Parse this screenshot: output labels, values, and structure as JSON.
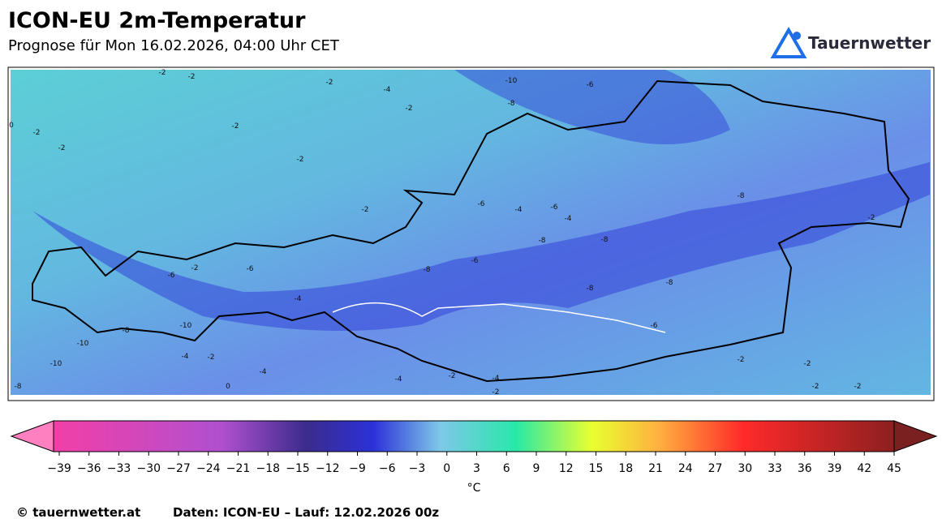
{
  "header": {
    "title": "ICON-EU 2m-Temperatur",
    "subtitle": "Prognose für Mon 16.02.2026, 04:00 Uhr CET"
  },
  "logo": {
    "text": "Tauernwetter"
  },
  "map": {
    "contour_labels": [
      -2,
      -2,
      -2,
      -4,
      -10,
      -6,
      -8,
      -2,
      -2,
      0,
      -2,
      -2,
      -2,
      -2,
      -8,
      -2,
      -4,
      -6,
      -4,
      -6,
      -6,
      -2,
      -4,
      -8,
      -8,
      -6,
      -8,
      -8,
      -6,
      -8,
      -6,
      -10,
      -10,
      -8,
      -10,
      -4,
      -2,
      -4,
      -4,
      -2,
      -4,
      -2,
      -2,
      -2,
      -2,
      0,
      -2,
      -8
    ]
  },
  "colorbar": {
    "ticks": [
      {
        "value": -39,
        "label": "−39"
      },
      {
        "value": -36,
        "label": "−36"
      },
      {
        "value": -33,
        "label": "−33"
      },
      {
        "value": -30,
        "label": "−30"
      },
      {
        "value": -27,
        "label": "−27"
      },
      {
        "value": -24,
        "label": "−24"
      },
      {
        "value": -21,
        "label": "−21"
      },
      {
        "value": -18,
        "label": "−18"
      },
      {
        "value": -15,
        "label": "−15"
      },
      {
        "value": -12,
        "label": "−12"
      },
      {
        "value": -9,
        "label": "−9"
      },
      {
        "value": -6,
        "label": "−6"
      },
      {
        "value": -3,
        "label": "−3"
      },
      0,
      3,
      6,
      9,
      12,
      15,
      18,
      21,
      24,
      27,
      30,
      33,
      36,
      39,
      42,
      45
    ],
    "unit": "°C"
  },
  "footer": {
    "copyright": "© tauernwetter.at",
    "source": "Daten: ICON-EU – Lauf: 12.02.2026 00z"
  }
}
